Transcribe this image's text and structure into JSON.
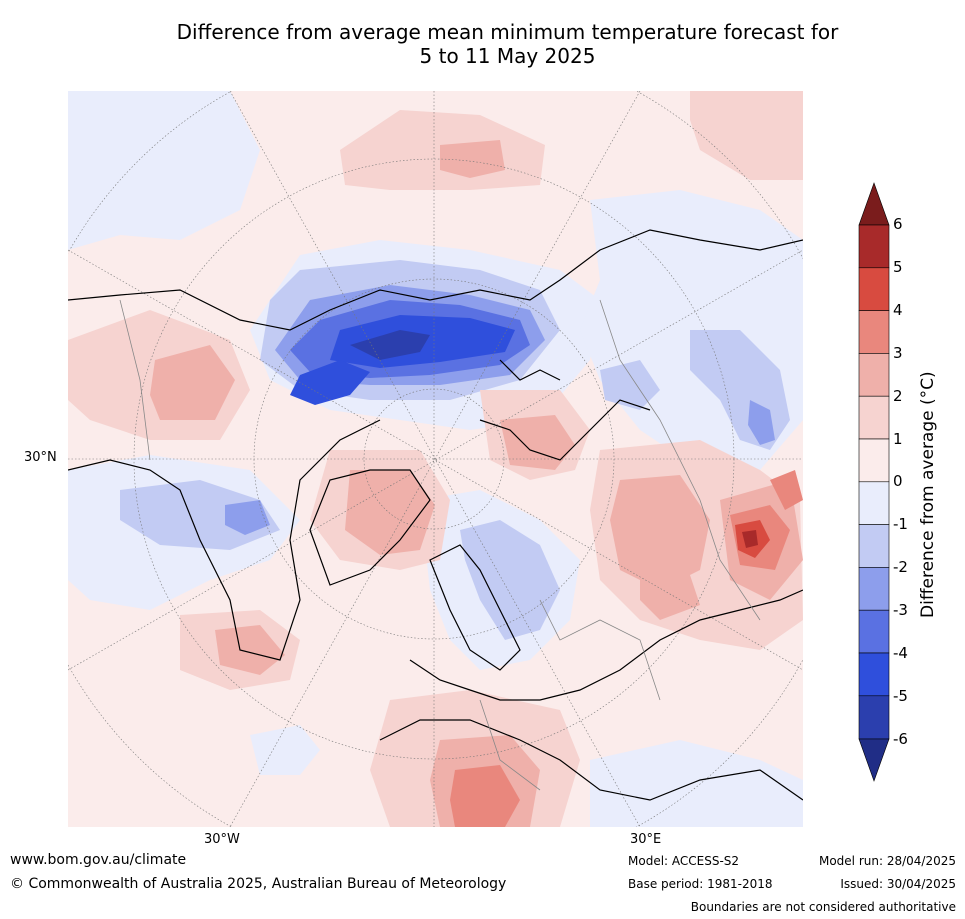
{
  "title": {
    "line1": "Difference from average mean minimum temperature forecast for",
    "line2": "5 to 11 May 2025"
  },
  "map": {
    "projection": "north-polar-stereographic",
    "lat_label": "30°N",
    "lon_labels": [
      "30°W",
      "30°E"
    ]
  },
  "colorbar": {
    "label": "Difference from average (°C)",
    "ticks": [
      "6",
      "5",
      "4",
      "3",
      "2",
      "1",
      "0",
      "-1",
      "-2",
      "-3",
      "-4",
      "-5",
      "-6"
    ],
    "colors": {
      "gt6": "#7a1c1c",
      "5_6": "#a82a2a",
      "4_5": "#d84b40",
      "3_4": "#e9877d",
      "2_3": "#efb0aa",
      "1_2": "#f6d3d0",
      "0_1": "#fbeceb",
      "m1_0": "#e9edfc",
      "m2_m1": "#c2cbf3",
      "m3_m2": "#8d9eec",
      "m4_m3": "#5a71e2",
      "m5_m4": "#2f4fdc",
      "m6_m5": "#2b3fae",
      "lt_m6": "#202d86"
    }
  },
  "footer": {
    "website": "www.bom.gov.au/climate",
    "copyright": "© Commonwealth of Australia 2025, Australian Bureau of Meteorology",
    "model": "Model: ACCESS-S2",
    "base_period": "Base period: 1981-2018",
    "model_run": "Model run: 28/04/2025",
    "issued": "Issued: 30/04/2025",
    "disclaimer": "Boundaries are not considered authoritative"
  }
}
